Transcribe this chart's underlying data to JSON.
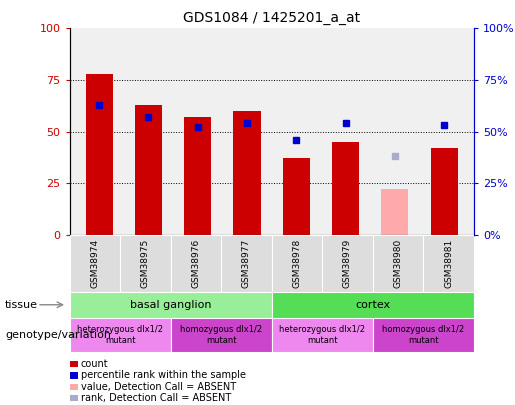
{
  "title": "GDS1084 / 1425201_a_at",
  "samples": [
    "GSM38974",
    "GSM38975",
    "GSM38976",
    "GSM38977",
    "GSM38978",
    "GSM38979",
    "GSM38980",
    "GSM38981"
  ],
  "count_values": [
    78,
    63,
    57,
    60,
    37,
    45,
    null,
    42
  ],
  "count_absent_values": [
    null,
    null,
    null,
    null,
    null,
    null,
    22,
    null
  ],
  "rank_values": [
    63,
    57,
    52,
    54,
    46,
    54,
    null,
    53
  ],
  "rank_absent_values": [
    null,
    null,
    null,
    null,
    null,
    null,
    38,
    null
  ],
  "ylim": [
    0,
    100
  ],
  "yticks": [
    0,
    25,
    50,
    75,
    100
  ],
  "bar_width": 0.55,
  "count_color": "#cc0000",
  "count_absent_color": "#ffaaaa",
  "rank_color": "#0000cc",
  "rank_absent_color": "#aaaacc",
  "tissue_groups": [
    {
      "label": "basal ganglion",
      "start": 0,
      "end": 3,
      "color": "#99ee99"
    },
    {
      "label": "cortex",
      "start": 4,
      "end": 7,
      "color": "#55dd55"
    }
  ],
  "genotype_groups": [
    {
      "label": "heterozygous dlx1/2\nmutant",
      "start": 0,
      "end": 1,
      "color": "#ee88ee"
    },
    {
      "label": "homozygous dlx1/2\nmutant",
      "start": 2,
      "end": 3,
      "color": "#cc44cc"
    },
    {
      "label": "heterozygous dlx1/2\nmutant",
      "start": 4,
      "end": 5,
      "color": "#ee88ee"
    },
    {
      "label": "homozygous dlx1/2\nmutant",
      "start": 6,
      "end": 7,
      "color": "#cc44cc"
    }
  ],
  "legend_items": [
    {
      "label": "count",
      "color": "#cc0000"
    },
    {
      "label": "percentile rank within the sample",
      "color": "#0000cc"
    },
    {
      "label": "value, Detection Call = ABSENT",
      "color": "#ffaaaa"
    },
    {
      "label": "rank, Detection Call = ABSENT",
      "color": "#aaaacc"
    }
  ],
  "left_label": "tissue",
  "left_label2": "genotype/variation",
  "bg_color": "#ffffff",
  "plot_bg": "#f0f0f0",
  "left_axis_color": "#cc0000",
  "right_axis_color": "#0000cc"
}
